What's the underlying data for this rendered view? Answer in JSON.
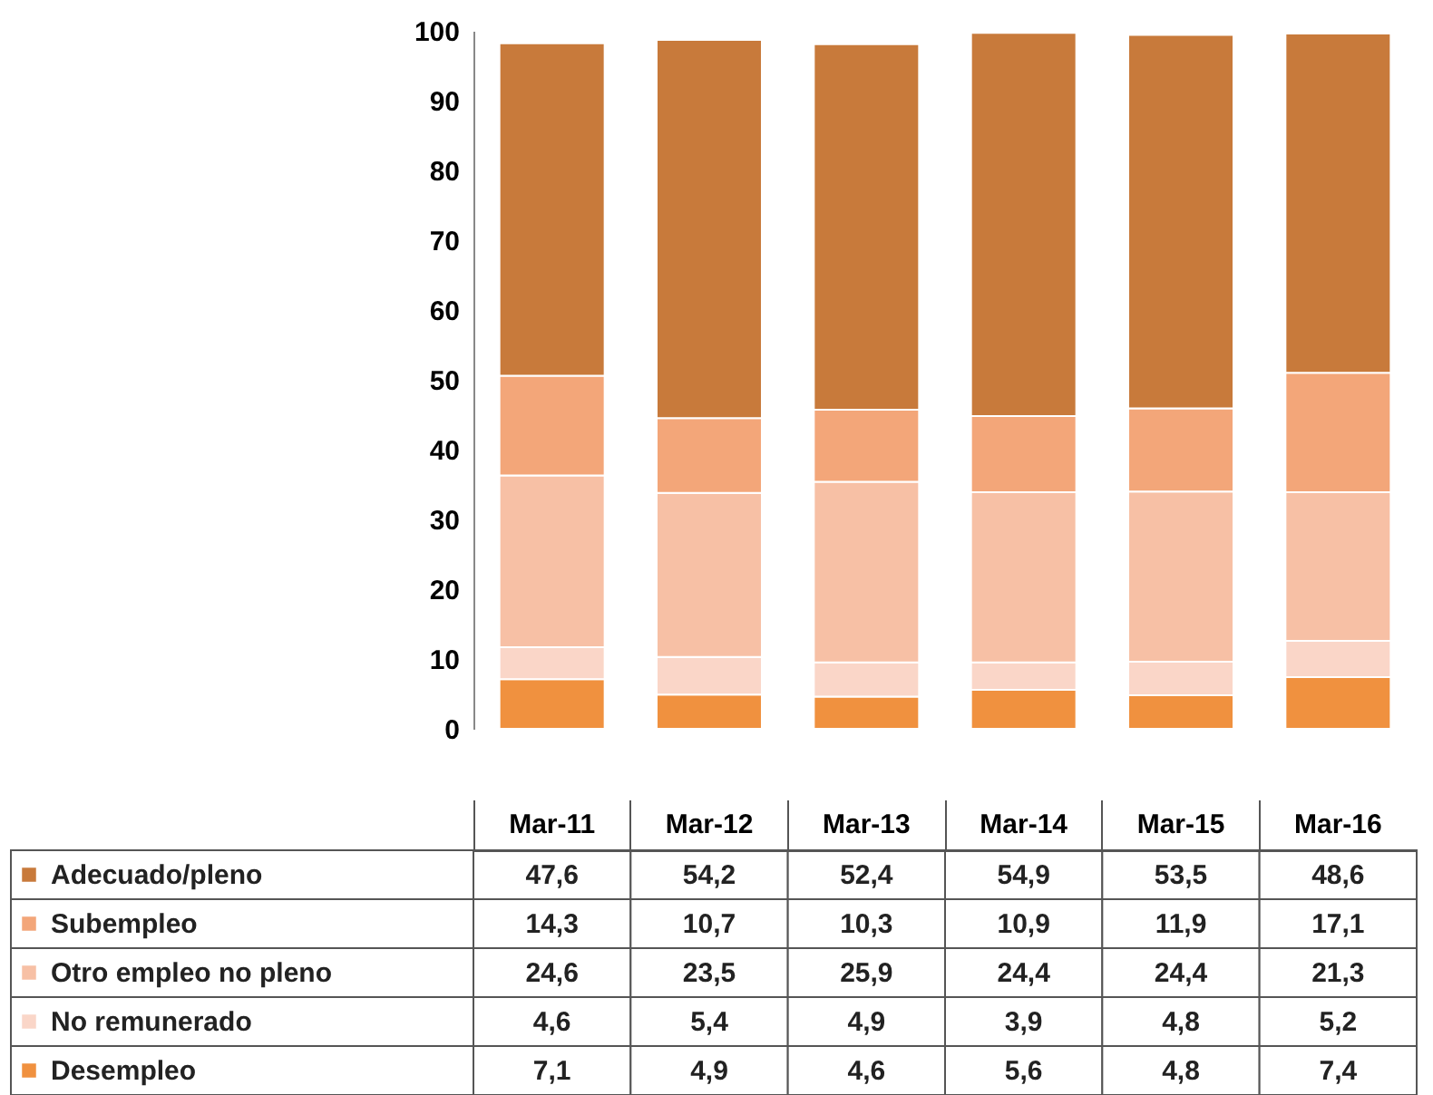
{
  "chart_data": {
    "type": "bar",
    "stacked": true,
    "categories": [
      "Mar-11",
      "Mar-12",
      "Mar-13",
      "Mar-14",
      "Mar-15",
      "Mar-16"
    ],
    "series": [
      {
        "name": "Desempleo",
        "color": "#f0913f",
        "values": [
          7.1,
          4.9,
          4.6,
          5.6,
          4.8,
          7.4
        ],
        "value_labels": [
          "7,1",
          "4,9",
          "4,6",
          "5,6",
          "4,8",
          "7,4"
        ]
      },
      {
        "name": "No remunerado",
        "color": "#fad6c8",
        "values": [
          4.6,
          5.4,
          4.9,
          3.9,
          4.8,
          5.2
        ],
        "value_labels": [
          "4,6",
          "5,4",
          "4,9",
          "3,9",
          "4,8",
          "5,2"
        ]
      },
      {
        "name": "Otro empleo no pleno",
        "color": "#f7c0a5",
        "values": [
          24.6,
          23.5,
          25.9,
          24.4,
          24.4,
          21.3
        ],
        "value_labels": [
          "24,6",
          "23,5",
          "25,9",
          "24,4",
          "24,4",
          "21,3"
        ]
      },
      {
        "name": "Subempleo",
        "color": "#f3a679",
        "values": [
          14.3,
          10.7,
          10.3,
          10.9,
          11.9,
          17.1
        ],
        "value_labels": [
          "14,3",
          "10,7",
          "10,3",
          "10,9",
          "11,9",
          "17,1"
        ]
      },
      {
        "name": "Adecuado/pleno",
        "color": "#c87a3b",
        "values": [
          47.6,
          54.2,
          52.4,
          54.9,
          53.5,
          48.6
        ],
        "value_labels": [
          "47,6",
          "54,2",
          "52,4",
          "54,9",
          "53,5",
          "48,6"
        ]
      }
    ],
    "ylim": [
      0,
      100
    ],
    "yticks": [
      0,
      10,
      20,
      30,
      40,
      50,
      60,
      70,
      80,
      90,
      100
    ],
    "grid": false,
    "legend": "bottom"
  }
}
